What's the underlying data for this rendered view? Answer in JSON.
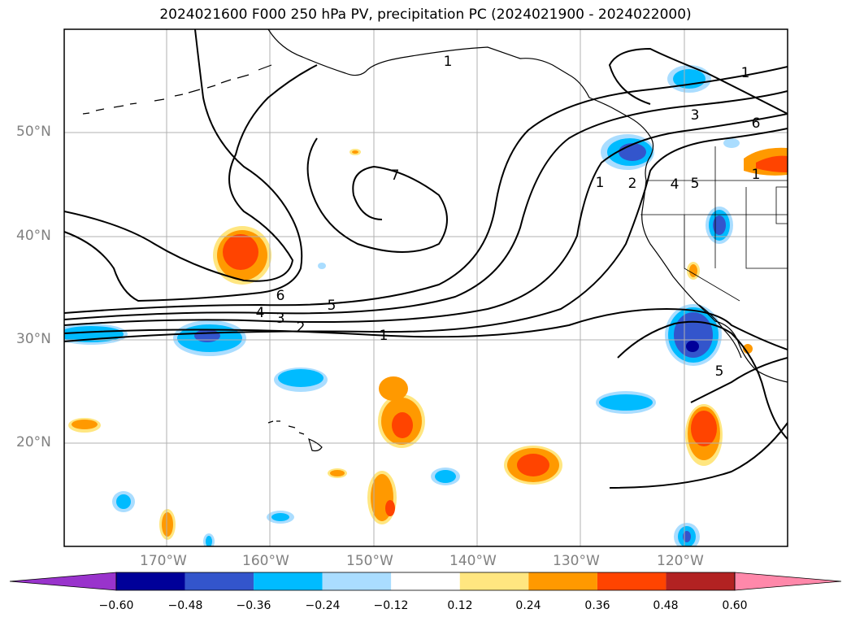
{
  "title": "2024021600 F000 250 hPa PV, precipitation PC (2024021900 - 2024022000)",
  "latitudes": [
    "50°N",
    "40°N",
    "30°N",
    "20°N"
  ],
  "longitudes": [
    "170°W",
    "160°W",
    "150°W",
    "140°W",
    "130°W",
    "120°W"
  ],
  "colorbar": {
    "ticks": [
      "−0.60",
      "−0.48",
      "−0.36",
      "−0.24",
      "−0.12",
      "0.12",
      "0.24",
      "0.36",
      "0.48",
      "0.60"
    ],
    "colors": [
      "#9933cc",
      "#000099",
      "#3355cc",
      "#00bbff",
      "#aaddff",
      "#ffffff",
      "#ffe680",
      "#ff9900",
      "#ff4400",
      "#b22222",
      "#ff88aa"
    ]
  },
  "contour_labels": [
    "1",
    "1",
    "1",
    "1",
    "2",
    "3",
    "4",
    "5",
    "5",
    "6",
    "6",
    "7",
    "1",
    "2",
    "3",
    "4",
    "5"
  ]
}
